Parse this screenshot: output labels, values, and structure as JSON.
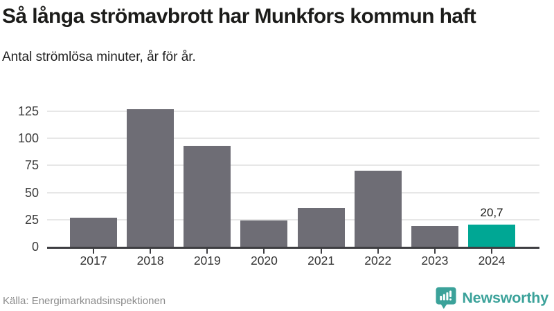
{
  "header": {
    "title": "Så långa strömavbrott har Munkfors kommun haft",
    "subtitle": "Antal strömlösa minuter, år för år."
  },
  "chart_data": {
    "type": "bar",
    "title": "Så långa strömavbrott har Munkfors kommun haft",
    "subtitle": "Antal strömlösa minuter, år för år.",
    "categories": [
      "2017",
      "2018",
      "2019",
      "2020",
      "2021",
      "2022",
      "2023",
      "2024"
    ],
    "values": [
      27,
      127,
      93,
      24,
      36,
      70,
      19,
      20.7
    ],
    "yticks": [
      0,
      25,
      50,
      75,
      100,
      125
    ],
    "ylim": [
      0,
      140
    ],
    "grid": true,
    "legend": false,
    "bar_color": "#6e6d75",
    "highlight_color": "#00a794",
    "highlight_category": "2024",
    "data_label": {
      "category": "2024",
      "text": "20,7"
    }
  },
  "footer": {
    "source": "Källa: Energimarknadsinspektionen",
    "logo_text": "Newsworthy",
    "logo_color": "#3ba29a"
  }
}
